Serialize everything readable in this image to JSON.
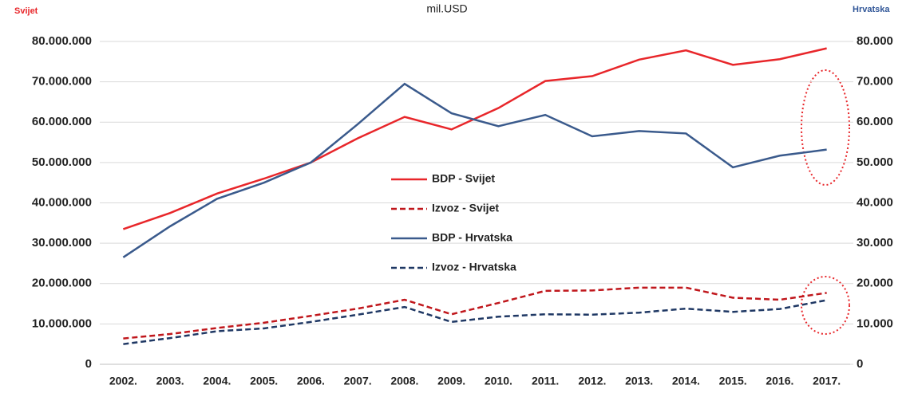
{
  "chart_data": {
    "type": "line",
    "title": "mil.USD",
    "y_label": "Svijet",
    "y2_label": "Hrvatska",
    "categories": [
      "2002.",
      "2003.",
      "2004.",
      "2005.",
      "2006.",
      "2007.",
      "2008.",
      "2009.",
      "2010.",
      "2011.",
      "2012.",
      "2013.",
      "2014.",
      "2015.",
      "2016.",
      "2017."
    ],
    "series": [
      {
        "name": "BDP - Svijet",
        "color": "#e8262a",
        "dashed": false,
        "axis": "y",
        "values": [
          33500000,
          37500000,
          42300000,
          46000000,
          50000000,
          56000000,
          61300000,
          58200000,
          63500000,
          70200000,
          71400000,
          75500000,
          77800000,
          74200000,
          75600000,
          78300000
        ]
      },
      {
        "name": "Izvoz - Svijet",
        "color": "#c0171c",
        "dashed": true,
        "axis": "y",
        "values": [
          6400000,
          7500000,
          9000000,
          10300000,
          12000000,
          13800000,
          16000000,
          12400000,
          15200000,
          18200000,
          18300000,
          19000000,
          19000000,
          16500000,
          16000000,
          17700000
        ]
      },
      {
        "name": "BDP - Hrvatska",
        "color": "#3a5a8c",
        "dashed": false,
        "axis": "y2",
        "values": [
          26500,
          34200,
          41000,
          45000,
          50000,
          59500,
          69500,
          62200,
          59000,
          61800,
          56500,
          57800,
          57200,
          48800,
          51700,
          53200
        ]
      },
      {
        "name": "Izvoz - Hrvatska",
        "color": "#1f3864",
        "dashed": true,
        "axis": "y2",
        "values": [
          5000,
          6500,
          8200,
          8900,
          10500,
          12300,
          14200,
          10500,
          11800,
          12400,
          12300,
          12800,
          13800,
          13000,
          13700,
          15900
        ]
      }
    ],
    "ylim": [
      0,
      80000000
    ],
    "yticks": [
      0,
      {
        "value": 10000000,
        "label": "10.000.000"
      },
      {
        "value": 20000000,
        "label": "20.000.000"
      },
      {
        "value": 30000000,
        "label": "30.000.000"
      },
      {
        "value": 40000000,
        "label": "40.000.000"
      },
      {
        "value": 50000000,
        "label": "50.000.000"
      },
      {
        "value": 60000000,
        "label": "60.000.000"
      },
      {
        "value": 70000000,
        "label": "70.000.000"
      },
      {
        "value": 80000000,
        "label": "80.000.000"
      }
    ],
    "y2lim": [
      0,
      80000
    ],
    "y2ticks": [
      0,
      {
        "value": 10000,
        "label": "10.000"
      },
      {
        "value": 20000,
        "label": "20.000"
      },
      {
        "value": 30000,
        "label": "30.000"
      },
      {
        "value": 40000,
        "label": "40.000"
      },
      {
        "value": 50000,
        "label": "50.000"
      },
      {
        "value": 60000,
        "label": "60.000"
      },
      {
        "value": 70000,
        "label": "70.000"
      },
      {
        "value": 80000,
        "label": "80.000"
      }
    ],
    "grid": true,
    "legend": "center"
  }
}
